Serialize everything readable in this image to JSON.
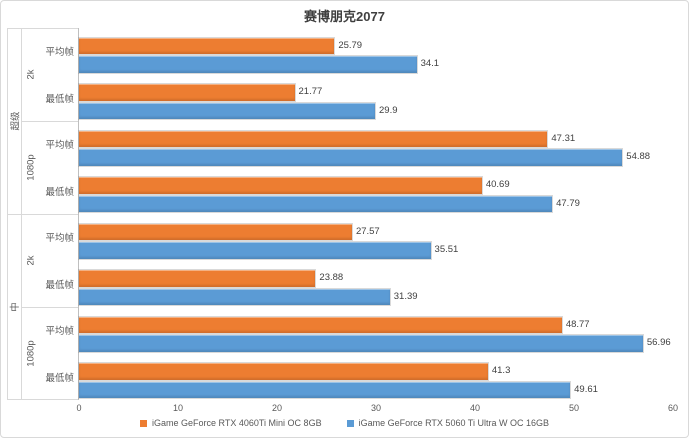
{
  "chart_data": {
    "type": "bar",
    "orientation": "horizontal",
    "title": "赛博朋克2077",
    "xlabel": "",
    "ylabel": "",
    "xlim": [
      0,
      60
    ],
    "x_ticks": [
      0,
      10,
      20,
      30,
      40,
      50,
      60
    ],
    "grid": false,
    "legend_position": "bottom",
    "series": [
      {
        "name": "iGame GeForce RTX 4060Ti Mini OC 8GB",
        "color": "#ED7D31"
      },
      {
        "name": "iGame GeForce RTX 5060 Ti Ultra W OC 16GB",
        "color": "#5B9BD5"
      }
    ],
    "category_levels": [
      "quality",
      "resolution",
      "metric"
    ],
    "rows": [
      {
        "quality": "超级",
        "resolution": "2k",
        "metric": "平均帧",
        "values": [
          25.79,
          34.1
        ]
      },
      {
        "quality": "超级",
        "resolution": "2k",
        "metric": "最低帧",
        "values": [
          21.77,
          29.9
        ]
      },
      {
        "quality": "超级",
        "resolution": "1080p",
        "metric": "平均帧",
        "values": [
          47.31,
          54.88
        ]
      },
      {
        "quality": "超级",
        "resolution": "1080p",
        "metric": "最低帧",
        "values": [
          40.69,
          47.79
        ]
      },
      {
        "quality": "中",
        "resolution": "2k",
        "metric": "平均帧",
        "values": [
          27.57,
          35.51
        ]
      },
      {
        "quality": "中",
        "resolution": "2k",
        "metric": "最低帧",
        "values": [
          23.88,
          31.39
        ]
      },
      {
        "quality": "中",
        "resolution": "1080p",
        "metric": "平均帧",
        "values": [
          48.77,
          56.96
        ]
      },
      {
        "quality": "中",
        "resolution": "1080p",
        "metric": "最低帧",
        "values": [
          41.3,
          49.61
        ]
      }
    ],
    "colors": {
      "axis_text": "#595959",
      "value_label_text": "#404040",
      "title_text": "#3f3f3f",
      "divider_line": "#d9d9d9",
      "axis_line": "#bfbfbf"
    }
  }
}
